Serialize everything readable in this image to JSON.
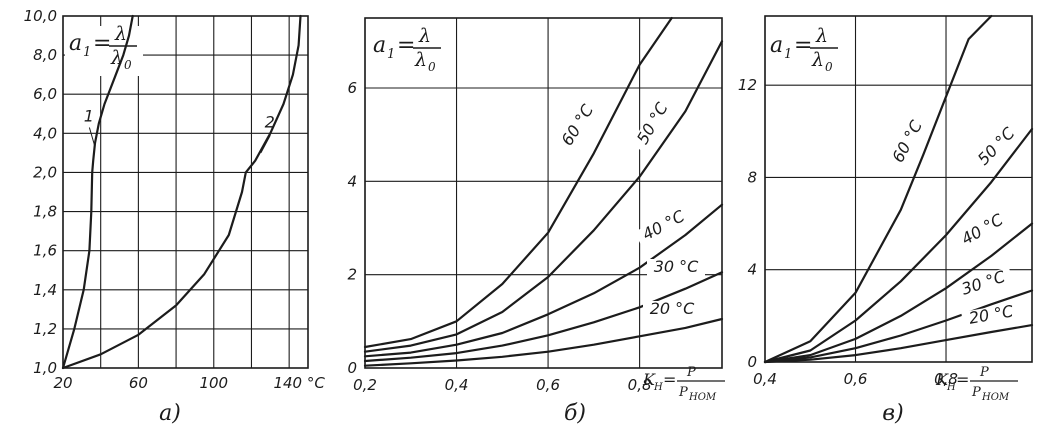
{
  "chart_data": [
    {
      "type": "line",
      "caption": "а)",
      "formula": {
        "lhs": "a",
        "sub": "1",
        "num": "λ",
        "den": "λ",
        "den_sub": "0"
      },
      "x_tick_labels": [
        "20",
        "60",
        "100",
        "140 °C"
      ],
      "y_tick_labels": [
        "1,0",
        "1,2",
        "1,4",
        "1,6",
        "1,8",
        "2,0",
        "4,0",
        "6,0",
        "8,0",
        "10,0"
      ],
      "xlim": [
        20,
        150
      ],
      "series": [
        {
          "name": "1",
          "x": [
            20,
            26,
            31,
            34,
            35,
            35.5,
            36,
            37,
            39,
            42,
            48,
            52,
            55,
            57
          ],
          "y": [
            1.0,
            1.2,
            1.4,
            1.6,
            1.8,
            2.0,
            2.6,
            3.5,
            4.5,
            5.5,
            7.0,
            8.0,
            9.0,
            10.0
          ]
        },
        {
          "name": "2",
          "x": [
            20,
            40,
            60,
            80,
            95,
            108,
            115,
            117,
            122,
            130,
            137,
            142,
            145,
            146
          ],
          "y": [
            1.0,
            1.07,
            1.17,
            1.32,
            1.48,
            1.68,
            1.9,
            2.0,
            2.6,
            4.0,
            5.5,
            7.0,
            8.5,
            10.0
          ]
        }
      ]
    },
    {
      "type": "line",
      "caption": "б)",
      "formula": {
        "lhs": "a",
        "sub": "1",
        "num": "λ",
        "den": "λ",
        "den_sub": "0"
      },
      "x_tick_labels": [
        "0,2",
        "0,4",
        "0,6",
        "0,8"
      ],
      "y_tick_labels": [
        "0",
        "2",
        "4",
        "6"
      ],
      "xlabel": {
        "k": "K",
        "k_sub": "Н",
        "num": "P",
        "den": "P",
        "den_sub": "НОМ"
      },
      "xlim": [
        0.2,
        0.98
      ],
      "ylim": [
        0,
        7.5
      ],
      "series": [
        {
          "name": "60 °C",
          "x": [
            0.2,
            0.3,
            0.4,
            0.5,
            0.6,
            0.7,
            0.8,
            0.87
          ],
          "y": [
            0.45,
            0.62,
            1.0,
            1.8,
            2.9,
            4.6,
            6.5,
            7.5
          ]
        },
        {
          "name": "50 °C",
          "x": [
            0.2,
            0.3,
            0.4,
            0.5,
            0.6,
            0.7,
            0.8,
            0.9,
            0.98
          ],
          "y": [
            0.35,
            0.48,
            0.72,
            1.2,
            1.95,
            2.95,
            4.1,
            5.5,
            7.0
          ]
        },
        {
          "name": "40 °C",
          "x": [
            0.2,
            0.3,
            0.4,
            0.5,
            0.6,
            0.7,
            0.8,
            0.9,
            0.98
          ],
          "y": [
            0.25,
            0.33,
            0.5,
            0.75,
            1.15,
            1.6,
            2.15,
            2.85,
            3.5
          ]
        },
        {
          "name": "30 °C",
          "x": [
            0.2,
            0.3,
            0.4,
            0.5,
            0.6,
            0.7,
            0.8,
            0.9,
            0.98
          ],
          "y": [
            0.15,
            0.22,
            0.32,
            0.48,
            0.7,
            0.98,
            1.3,
            1.7,
            2.05
          ]
        },
        {
          "name": "20 °C",
          "x": [
            0.2,
            0.3,
            0.4,
            0.5,
            0.6,
            0.7,
            0.8,
            0.9,
            0.98
          ],
          "y": [
            0.05,
            0.1,
            0.16,
            0.24,
            0.35,
            0.5,
            0.68,
            0.86,
            1.05
          ]
        }
      ]
    },
    {
      "type": "line",
      "caption": "в)",
      "formula": {
        "lhs": "a",
        "sub": "1",
        "num": "λ",
        "den": "λ",
        "den_sub": "0"
      },
      "x_tick_labels": [
        "0,4",
        "0,6",
        "0,8"
      ],
      "y_tick_labels": [
        "0",
        "4",
        "8",
        "12"
      ],
      "xlabel": {
        "k": "K",
        "k_sub": "Н",
        "num": "P",
        "den": "P",
        "den_sub": "НОМ"
      },
      "xlim": [
        0.4,
        0.99
      ],
      "ylim": [
        0,
        15
      ],
      "series": [
        {
          "name": "60 °C",
          "x": [
            0.4,
            0.5,
            0.6,
            0.7,
            0.75,
            0.8,
            0.85,
            0.9
          ],
          "y": [
            0,
            0.9,
            3.0,
            6.6,
            9.0,
            11.5,
            14.0,
            15.0
          ]
        },
        {
          "name": "50 °C",
          "x": [
            0.4,
            0.5,
            0.6,
            0.7,
            0.8,
            0.9,
            0.99
          ],
          "y": [
            0,
            0.5,
            1.8,
            3.5,
            5.5,
            7.8,
            10.1
          ]
        },
        {
          "name": "40 °C",
          "x": [
            0.4,
            0.5,
            0.6,
            0.7,
            0.8,
            0.9,
            0.99
          ],
          "y": [
            0,
            0.3,
            1.0,
            2.0,
            3.2,
            4.6,
            6.0
          ]
        },
        {
          "name": "30 °C",
          "x": [
            0.4,
            0.5,
            0.6,
            0.7,
            0.8,
            0.9,
            0.99
          ],
          "y": [
            0,
            0.2,
            0.6,
            1.15,
            1.8,
            2.5,
            3.1
          ]
        },
        {
          "name": "20 °C",
          "x": [
            0.4,
            0.5,
            0.6,
            0.7,
            0.8,
            0.9,
            0.99
          ],
          "y": [
            0,
            0.1,
            0.3,
            0.6,
            0.95,
            1.3,
            1.6
          ]
        }
      ]
    }
  ]
}
